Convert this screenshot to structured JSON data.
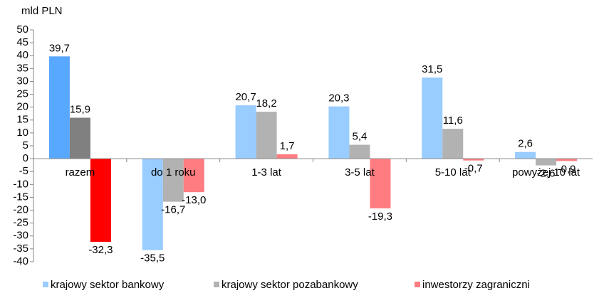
{
  "chart_data": {
    "type": "bar",
    "y_label": "mld PLN",
    "categories": [
      "razem",
      "do 1 roku",
      "1-3 lat",
      "3-5 lat",
      "5-10 lat",
      "powyżej 10 lat"
    ],
    "series": [
      {
        "name": "krajowy sektor bankowy",
        "color": "#99ccff",
        "point_colors": [
          "#59a8ff",
          "#99ccff",
          "#99ccff",
          "#99ccff",
          "#99ccff",
          "#99ccff"
        ],
        "values": [
          39.7,
          -35.5,
          20.7,
          20.3,
          31.5,
          2.6
        ],
        "value_labels": [
          "39,7",
          "-35,5",
          "20,7",
          "20,3",
          "31,5",
          "2,6"
        ]
      },
      {
        "name": "krajowy sektor pozabankowy",
        "color": "#b2b2b2",
        "point_colors": [
          "#808080",
          "#b2b2b2",
          "#b2b2b2",
          "#b2b2b2",
          "#b2b2b2",
          "#b2b2b2"
        ],
        "values": [
          15.9,
          -16.7,
          18.2,
          5.4,
          11.6,
          -2.6
        ],
        "value_labels": [
          "15,9",
          "-16,7",
          "18,2",
          "5,4",
          "11,6",
          "-2,6"
        ]
      },
      {
        "name": "inwestorzy zagraniczni",
        "color": "#ff7c80",
        "point_colors": [
          "#ff0000",
          "#ff7c80",
          "#ff7c80",
          "#ff7c80",
          "#ff7c80",
          "#ff7c80"
        ],
        "values": [
          -32.3,
          -13.0,
          1.7,
          -19.3,
          -0.7,
          -0.9
        ],
        "value_labels": [
          "-32,3",
          "-13,0",
          "1,7",
          "-19,3",
          "-0,7",
          "-0,9"
        ]
      }
    ],
    "ylim": [
      -40,
      50
    ],
    "yticks": [
      -40,
      -35,
      -30,
      -25,
      -20,
      -15,
      -10,
      -5,
      0,
      5,
      10,
      15,
      20,
      25,
      30,
      35,
      40,
      45,
      50
    ],
    "legend": "bottom"
  }
}
